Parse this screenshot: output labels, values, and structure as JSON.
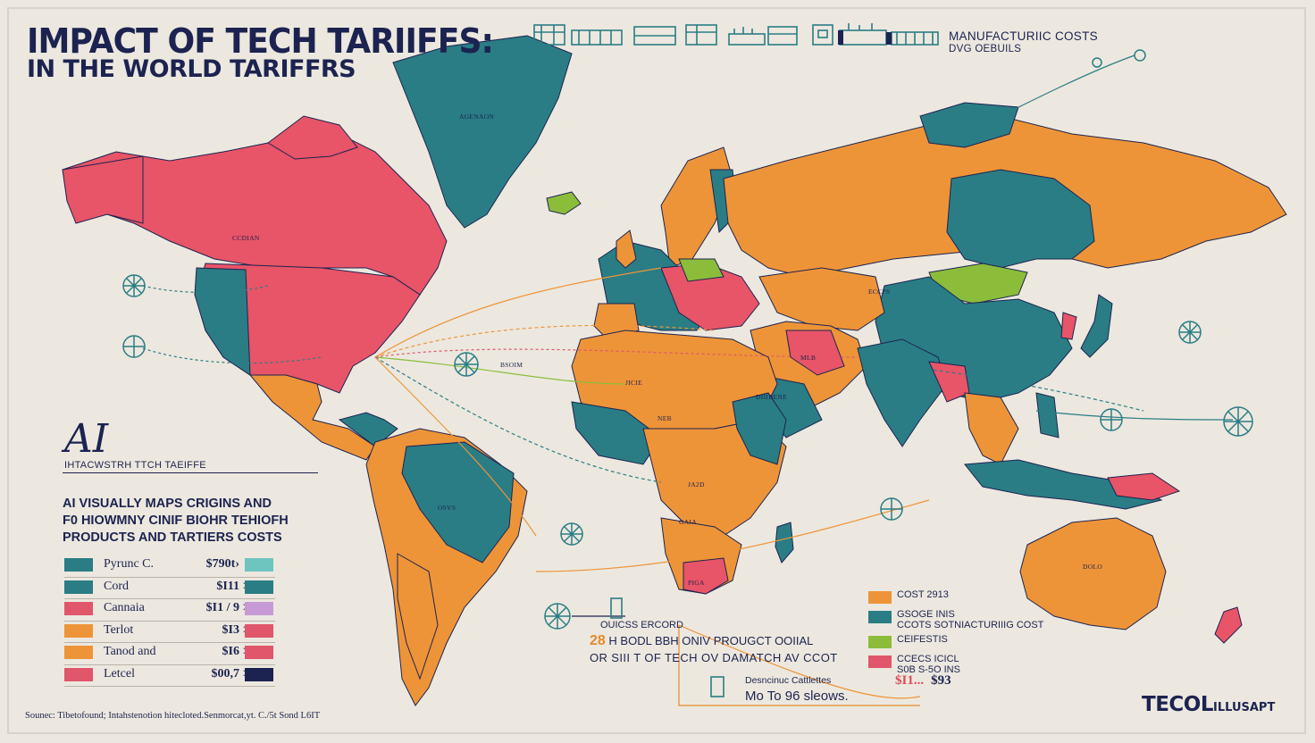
{
  "title": "IMPACT OF TECH TARIIFFS:",
  "subtitle": "IN THE WORLD TARIFFRS",
  "top_right": {
    "line1": "MANUFACTURIIC COSTS",
    "line2": "DVG OEBUILS"
  },
  "ai_panel": {
    "mark": "AI",
    "caption": "IHTACWSTRH TTCH TAEIFFE",
    "description": [
      "AI VISUALLY MAPS CRIGINS AND",
      "F0 HIOWMNY CINIF BIOHR TEHIOFH",
      "PRODUCTS AND TARTIERS COSTS"
    ]
  },
  "legend": [
    {
      "label": "Pyrunc C.",
      "value": "$790t›",
      "arrow": "",
      "color_left": "#2a7d85",
      "color_right": "#6ec4bf"
    },
    {
      "label": "Cord",
      "value": "$I11",
      "arrow": ">",
      "color_left": "#2a7d85",
      "color_right": "#2a7d85"
    },
    {
      "label": "Cannaia",
      "value": "$I1 / 9",
      "arrow": ">",
      "color_left": "#e0566a",
      "color_right": "#c79ad6"
    },
    {
      "label": "Terlot",
      "value": "$I3",
      "arrow": ">",
      "color_left": "#ee9438",
      "color_right": "#e0566a"
    },
    {
      "label": "Tanod and",
      "value": "$I6",
      "arrow": ">",
      "color_left": "#ee9438",
      "color_right": "#e0566a"
    },
    {
      "label": "Letcel",
      "value": "$00,7",
      "arrow": ">",
      "color_left": "#e0566a",
      "color_right": "#1c2350"
    }
  ],
  "right_legend": [
    {
      "color": "#ee9438",
      "lines": [
        "COST 2913"
      ]
    },
    {
      "color": "#2a7d85",
      "lines": [
        "GSOGE INIS",
        "CCOTS SOTNIACTURIIIG COST"
      ]
    },
    {
      "color": "#8bbd3a",
      "lines": [
        "CEIFESTIS"
      ]
    },
    {
      "color": "#e0566a",
      "lines": [
        "CCECS ICICL",
        "S0B S-5O INS"
      ]
    }
  ],
  "center_caption": {
    "line1": "OUICSS ERCORD",
    "number": "28",
    "line2": "H BODL BBH ONIV PROUGCT OOIIAL",
    "line3": "OR SIII T OF TECH OV DAMATCH AV CCOT"
  },
  "bottom_caption": {
    "line1": "Desncinuc Cattlettes",
    "line2": "Mo To 96 sleows."
  },
  "price_pair": {
    "a": "$I1...",
    "b": "$93"
  },
  "map_labels": {
    "greenland": "AGENAON",
    "canada": "CCDIAN",
    "asia": "ECCPS",
    "middle_east": "BSOIM",
    "africa_north": "JICIE",
    "africa_mid": "NEB",
    "africa_south": "JA2D",
    "africa_s2": "GAIA",
    "africa_s3": "PIGA",
    "mideast2": "DHIBENE",
    "china": "MLB",
    "south_america": "OSVS",
    "australia": "DOLO"
  },
  "source": "Sounec: Tibetofound; Intahstenotion hitecloted.Senmorcat,yt. C./5t Sond L6IT",
  "logo": {
    "main": "TECOL",
    "tail": "ILLUSAPT"
  },
  "colors": {
    "navy": "#1c2350",
    "teal": "#2a7d85",
    "orange": "#ee9438",
    "coral": "#e0566a",
    "green": "#8bbd3a",
    "background": "#ece8df"
  }
}
